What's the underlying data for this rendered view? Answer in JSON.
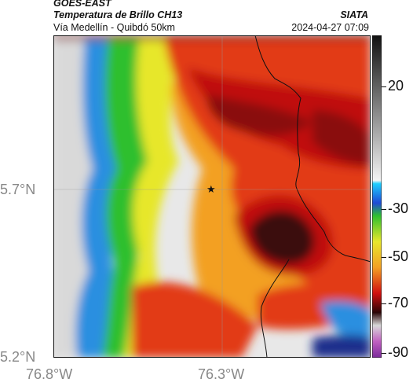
{
  "header": {
    "satellite": "GOES-EAST",
    "product": "Temperatura de Brillo CH13",
    "region": "Vía Medellín - Quibdó 50km",
    "organization": "SIATA",
    "datetime": "2024-04-27 07:09"
  },
  "axes": {
    "lat_labels": [
      "5.7°N",
      "5.2°N"
    ],
    "lon_labels": [
      "76.8°W",
      "76.3°W"
    ]
  },
  "colorbar": {
    "labels": [
      "20",
      "-30",
      "-50",
      "-70",
      "-90"
    ]
  },
  "colors": {
    "coldest": "#2a0606",
    "cold": "#b80e0e",
    "warm_cloud": "#f0c020",
    "clear": "#2fbf2f",
    "surface": "#d8d8d8"
  }
}
